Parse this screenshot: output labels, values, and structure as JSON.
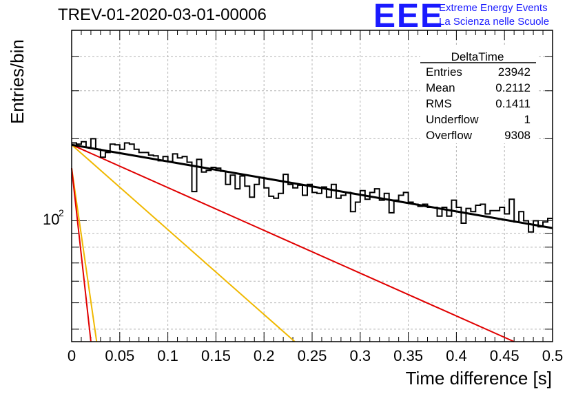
{
  "header": {
    "title": "TREV-01-2020-03-01-00006",
    "logo_text": "EEE",
    "org_line1": "Extreme Energy Events",
    "org_line2": "La Scienza nelle Scuole"
  },
  "stats_box": {
    "name": "DeltaTime",
    "rows": [
      {
        "label": "Entries",
        "value": "23942"
      },
      {
        "label": "Mean",
        "value": "0.2112"
      },
      {
        "label": "RMS",
        "value": "0.1411"
      },
      {
        "label": "Underflow",
        "value": "1"
      },
      {
        "label": "Overflow",
        "value": "9308"
      }
    ]
  },
  "chart_data": {
    "type": "line",
    "xlabel": "Time difference [s]",
    "ylabel": "Entries/bin",
    "xlim": [
      0,
      0.5
    ],
    "ylim": [
      36,
      500
    ],
    "log_y": true,
    "grid": true,
    "x_ticks": [
      "0",
      "0.05",
      "0.1",
      "0.15",
      "0.2",
      "0.25",
      "0.3",
      "0.35",
      "0.4",
      "0.45",
      "0.5"
    ],
    "y_tick_label": "10^2",
    "colors": {
      "histogram": "#000000",
      "fit": "#000000",
      "red": "#e00000",
      "yellow": "#f0b800",
      "logo": "#1a1aff",
      "grid": "#b4b4b4"
    },
    "histogram": {
      "bin_width": 0.005,
      "values": [
        193,
        191,
        195,
        186,
        200,
        183,
        171,
        178,
        191,
        190,
        183,
        193,
        191,
        183,
        178,
        178,
        174,
        173,
        166,
        172,
        165,
        176,
        170,
        172,
        164,
        128,
        168,
        151,
        153,
        157,
        156,
        152,
        136,
        147,
        131,
        146,
        134,
        122,
        136,
        144,
        132,
        123,
        121,
        126,
        148,
        136,
        132,
        135,
        124,
        136,
        127,
        126,
        133,
        122,
        136,
        121,
        124,
        127,
        108,
        117,
        129,
        120,
        127,
        131,
        119,
        126,
        107,
        119,
        124,
        127,
        117,
        115,
        113,
        115,
        112,
        112,
        104,
        112,
        104,
        119,
        112,
        98,
        111,
        108,
        114,
        115,
        106,
        109,
        109,
        112,
        106,
        120,
        99,
        108,
        100,
        91,
        100,
        95,
        99,
        102
      ]
    },
    "fit": {
      "label": "total",
      "x": [
        0,
        0.5
      ],
      "y": [
        190,
        94
      ]
    },
    "components": [
      {
        "color": "red",
        "x": [
          0,
          0.46
        ],
        "y": [
          190,
          36
        ]
      },
      {
        "color": "yellow",
        "x": [
          0,
          0.232
        ],
        "y": [
          190,
          36
        ]
      },
      {
        "color": "yellow",
        "x": [
          0,
          0.026
        ],
        "y": [
          156,
          36
        ]
      },
      {
        "color": "red",
        "x": [
          0,
          0.02
        ],
        "y": [
          156,
          36
        ]
      }
    ]
  }
}
